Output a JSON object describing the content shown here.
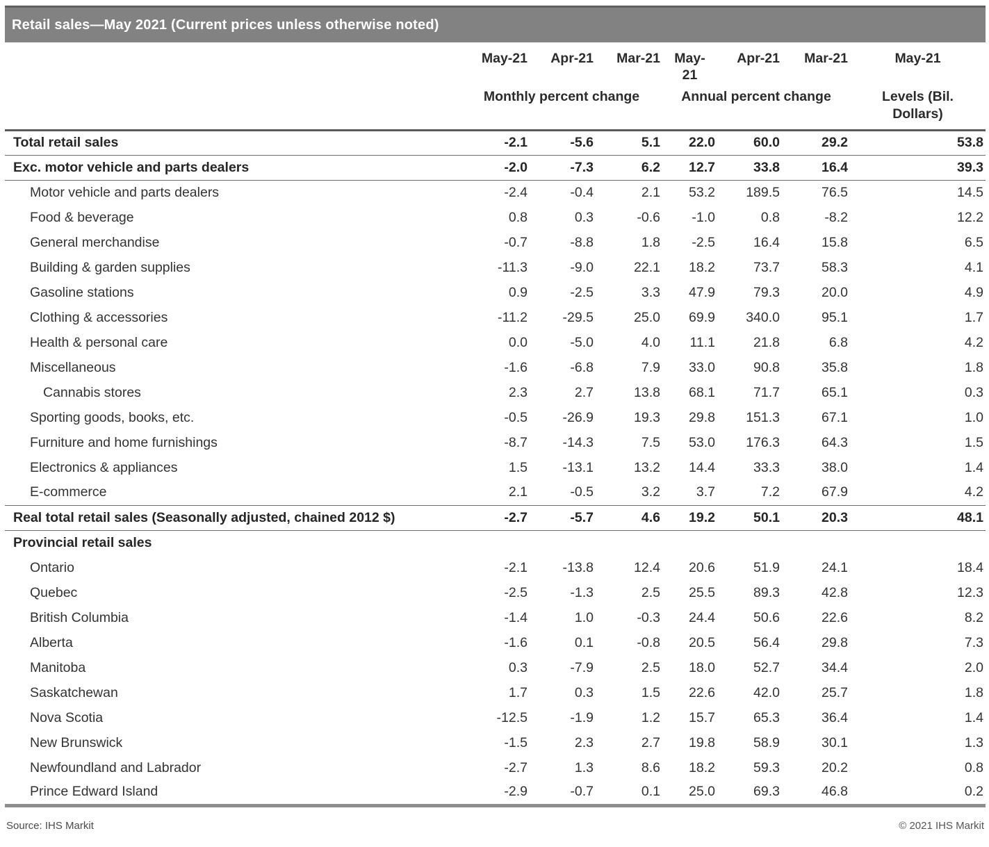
{
  "title": "Retail sales—May 2021 (Current prices unless otherwise noted)",
  "header": {
    "months": [
      "May-21",
      "Apr-21",
      "Mar-21",
      "May-\n21",
      "Apr-21",
      "Mar-21",
      "May-21"
    ],
    "groups": [
      "Monthly percent change",
      "Annual percent change",
      "Levels (Bil.\nDollars)"
    ]
  },
  "rows": [
    {
      "label": "Total retail sales",
      "indent": 0,
      "bold": true,
      "rule": true,
      "values": [
        "-2.1",
        "-5.6",
        "5.1",
        "22.0",
        "60.0",
        "29.2",
        "53.8"
      ]
    },
    {
      "label": "Exc. motor vehicle and parts dealers",
      "indent": 0,
      "bold": true,
      "rule": true,
      "values": [
        "-2.0",
        "-7.3",
        "6.2",
        "12.7",
        "33.8",
        "16.4",
        "39.3"
      ]
    },
    {
      "label": "Motor vehicle and parts dealers",
      "indent": 1,
      "values": [
        "-2.4",
        "-0.4",
        "2.1",
        "53.2",
        "189.5",
        "76.5",
        "14.5"
      ]
    },
    {
      "label": "Food & beverage",
      "indent": 1,
      "values": [
        "0.8",
        "0.3",
        "-0.6",
        "-1.0",
        "0.8",
        "-8.2",
        "12.2"
      ]
    },
    {
      "label": "General merchandise",
      "indent": 1,
      "values": [
        "-0.7",
        "-8.8",
        "1.8",
        "-2.5",
        "16.4",
        "15.8",
        "6.5"
      ]
    },
    {
      "label": "Building & garden supplies",
      "indent": 1,
      "values": [
        "-11.3",
        "-9.0",
        "22.1",
        "18.2",
        "73.7",
        "58.3",
        "4.1"
      ]
    },
    {
      "label": "Gasoline stations",
      "indent": 1,
      "values": [
        "0.9",
        "-2.5",
        "3.3",
        "47.9",
        "79.3",
        "20.0",
        "4.9"
      ]
    },
    {
      "label": "Clothing & accessories",
      "indent": 1,
      "values": [
        "-11.2",
        "-29.5",
        "25.0",
        "69.9",
        "340.0",
        "95.1",
        "1.7"
      ]
    },
    {
      "label": "Health & personal care",
      "indent": 1,
      "values": [
        "0.0",
        "-5.0",
        "4.0",
        "11.1",
        "21.8",
        "6.8",
        "4.2"
      ]
    },
    {
      "label": "Miscellaneous",
      "indent": 1,
      "values": [
        "-1.6",
        "-6.8",
        "7.9",
        "33.0",
        "90.8",
        "35.8",
        "1.8"
      ]
    },
    {
      "label": "Cannabis stores",
      "indent": 2,
      "values": [
        "2.3",
        "2.7",
        "13.8",
        "68.1",
        "71.7",
        "65.1",
        "0.3"
      ]
    },
    {
      "label": "Sporting goods, books, etc.",
      "indent": 1,
      "values": [
        "-0.5",
        "-26.9",
        "19.3",
        "29.8",
        "151.3",
        "67.1",
        "1.0"
      ]
    },
    {
      "label": "Furniture and home furnishings",
      "indent": 1,
      "values": [
        "-8.7",
        "-14.3",
        "7.5",
        "53.0",
        "176.3",
        "64.3",
        "1.5"
      ]
    },
    {
      "label": "Electronics & appliances",
      "indent": 1,
      "values": [
        "1.5",
        "-13.1",
        "13.2",
        "14.4",
        "33.3",
        "38.0",
        "1.4"
      ]
    },
    {
      "label": "E-commerce",
      "indent": 1,
      "rule": true,
      "values": [
        "2.1",
        "-0.5",
        "3.2",
        "3.7",
        "7.2",
        "67.9",
        "4.2"
      ]
    },
    {
      "label": "Real total retail sales (Seasonally adjusted, chained 2012 $)",
      "indent": 0,
      "bold": true,
      "rule": true,
      "values": [
        "-2.7",
        "-5.7",
        "4.6",
        "19.2",
        "50.1",
        "20.3",
        "48.1"
      ]
    },
    {
      "label": "Provincial retail sales",
      "indent": 0,
      "bold": true,
      "values": []
    },
    {
      "label": "Ontario",
      "indent": 1,
      "values": [
        "-2.1",
        "-13.8",
        "12.4",
        "20.6",
        "51.9",
        "24.1",
        "18.4"
      ]
    },
    {
      "label": "Quebec",
      "indent": 1,
      "values": [
        "-2.5",
        "-1.3",
        "2.5",
        "25.5",
        "89.3",
        "42.8",
        "12.3"
      ]
    },
    {
      "label": "British Columbia",
      "indent": 1,
      "values": [
        "-1.4",
        "1.0",
        "-0.3",
        "24.4",
        "50.6",
        "22.6",
        "8.2"
      ]
    },
    {
      "label": "Alberta",
      "indent": 1,
      "values": [
        "-1.6",
        "0.1",
        "-0.8",
        "20.5",
        "56.4",
        "29.8",
        "7.3"
      ]
    },
    {
      "label": "Manitoba",
      "indent": 1,
      "values": [
        "0.3",
        "-7.9",
        "2.5",
        "18.0",
        "52.7",
        "34.4",
        "2.0"
      ]
    },
    {
      "label": "Saskatchewan",
      "indent": 1,
      "values": [
        "1.7",
        "0.3",
        "1.5",
        "22.6",
        "42.0",
        "25.7",
        "1.8"
      ]
    },
    {
      "label": "Nova Scotia",
      "indent": 1,
      "values": [
        "-12.5",
        "-1.9",
        "1.2",
        "15.7",
        "65.3",
        "36.4",
        "1.4"
      ]
    },
    {
      "label": "New Brunswick",
      "indent": 1,
      "values": [
        "-1.5",
        "2.3",
        "2.7",
        "19.8",
        "58.9",
        "30.1",
        "1.3"
      ]
    },
    {
      "label": "Newfoundland and Labrador",
      "indent": 1,
      "values": [
        "-2.7",
        "1.3",
        "8.6",
        "18.2",
        "59.3",
        "20.2",
        "0.8"
      ]
    },
    {
      "label": "Prince Edward Island",
      "indent": 1,
      "values": [
        "-2.9",
        "-0.7",
        "0.1",
        "25.0",
        "69.3",
        "46.8",
        "0.2"
      ]
    }
  ],
  "footer": {
    "source": "Source: IHS Markit",
    "copyright": "© 2021 IHS Markit"
  }
}
